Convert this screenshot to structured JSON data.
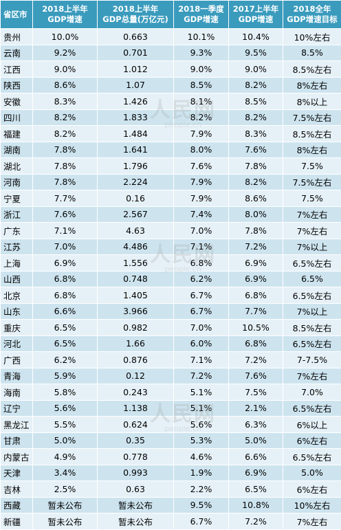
{
  "table": {
    "headers": [
      [
        "省区市"
      ],
      [
        "2018上半年",
        "GDP增速"
      ],
      [
        "2018上半年",
        "GDP总量(万亿元)"
      ],
      [
        "2018一季度",
        "GDP增速"
      ],
      [
        "2017上半年",
        "GDP增速"
      ],
      [
        "2018全年",
        "GDP增速目标"
      ]
    ],
    "rows": [
      [
        "贵州",
        "10.0%",
        "0.663",
        "10.1%",
        "10.4%",
        "10%左右"
      ],
      [
        "云南",
        "9.2%",
        "0.701",
        "9.3%",
        "9.5%",
        "8.5%"
      ],
      [
        "江西",
        "9.0%",
        "1.012",
        "9.0%",
        "9.0%",
        "8.5%左右"
      ],
      [
        "陕西",
        "8.6%",
        "1.07",
        "8.5%",
        "8.2%",
        "8%左右"
      ],
      [
        "安徽",
        "8.3%",
        "1.426",
        "8.1%",
        "8.5%",
        "8%以上"
      ],
      [
        "四川",
        "8.2%",
        "1.833",
        "8.2%",
        "8.2%",
        "7.5%左右"
      ],
      [
        "福建",
        "8.2%",
        "1.484",
        "7.9%",
        "8.3%",
        "8.5%左右"
      ],
      [
        "湖南",
        "7.8%",
        "1.641",
        "8.0%",
        "7.6%",
        "8%左右"
      ],
      [
        "湖北",
        "7.8%",
        "1.796",
        "7.6%",
        "7.8%",
        "7.5%"
      ],
      [
        "河南",
        "7.8%",
        "2.224",
        "7.9%",
        "8.2%",
        "7.5%左右"
      ],
      [
        "宁夏",
        "7.7%",
        "0.16",
        "7.9%",
        "8.6%",
        "7.5%"
      ],
      [
        "浙江",
        "7.6%",
        "2.567",
        "7.4%",
        "8.0%",
        "7%左右"
      ],
      [
        "广东",
        "7.1%",
        "4.63",
        "7.0%",
        "7.8%",
        "7%左右"
      ],
      [
        "江苏",
        "7.0%",
        "4.486",
        "7.1%",
        "7.2%",
        "7%以上"
      ],
      [
        "上海",
        "6.9%",
        "1.556",
        "6.8%",
        "6.9%",
        "6.5%左右"
      ],
      [
        "山西",
        "6.8%",
        "0.748",
        "6.2%",
        "6.9%",
        "6.5%"
      ],
      [
        "北京",
        "6.8%",
        "1.405",
        "6.7%",
        "6.8%",
        "6.5%左右"
      ],
      [
        "山东",
        "6.6%",
        "3.966",
        "6.7%",
        "7.7%",
        "7%以上"
      ],
      [
        "重庆",
        "6.5%",
        "0.982",
        "7.0%",
        "10.5%",
        "8.5%左右"
      ],
      [
        "河北",
        "6.5%",
        "1.66",
        "6.0%",
        "6.8%",
        "6.5%左右"
      ],
      [
        "广西",
        "6.2%",
        "0.876",
        "7.1%",
        "7.2%",
        "7-7.5%"
      ],
      [
        "青海",
        "5.9%",
        "0.12",
        "7.2%",
        "7.6%",
        "7%左右"
      ],
      [
        "海南",
        "5.8%",
        "0.243",
        "5.1%",
        "7.5%",
        "7.0%"
      ],
      [
        "辽宁",
        "5.6%",
        "1.138",
        "5.1%",
        "2.1%",
        "6.5%左右"
      ],
      [
        "黑龙江",
        "5.5%",
        "0.624",
        "5.6%",
        "6.3%",
        "6%以上"
      ],
      [
        "甘肃",
        "5.0%",
        "0.35",
        "5.3%",
        "5.0%",
        "6%左右"
      ],
      [
        "内蒙古",
        "4.9%",
        "0.778",
        "4.6%",
        "6.6%",
        "6.5%左右"
      ],
      [
        "天津",
        "3.4%",
        "0.993",
        "1.9%",
        "6.9%",
        "5.0%"
      ],
      [
        "吉林",
        "2.5%",
        "0.63",
        "2.2%",
        "6.5%",
        "6%左右"
      ],
      [
        "西藏",
        "暂未公布",
        "暂未公布",
        "9.5%",
        "10.8%",
        "10%左右"
      ],
      [
        "新疆",
        "暂未公布",
        "暂未公布",
        "6.7%",
        "7.2%",
        "7%左右"
      ]
    ]
  },
  "watermark": {
    "logo": "人民网",
    "url": "people.cn"
  },
  "colors": {
    "header_bg": "#3a9bbd",
    "row_light": "#e6f1f7",
    "row_dark": "#cde4ef"
  }
}
